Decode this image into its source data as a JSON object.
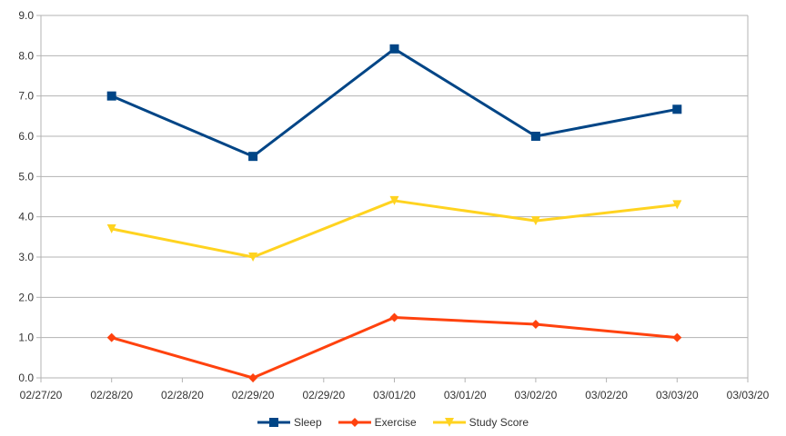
{
  "chart_data": {
    "type": "line",
    "x_tick_labels": [
      "02/27/20",
      "02/28/20",
      "02/28/20",
      "02/29/20",
      "02/29/20",
      "03/01/20",
      "03/01/20",
      "03/02/20",
      "03/02/20",
      "03/03/20",
      "03/03/20"
    ],
    "x": [
      "02/28/20",
      "02/29/20",
      "03/01/20",
      "03/02/20",
      "03/03/20"
    ],
    "y_ticks": [
      "0.0",
      "1.0",
      "2.0",
      "3.0",
      "4.0",
      "5.0",
      "6.0",
      "7.0",
      "8.0",
      "9.0"
    ],
    "ylim": [
      0,
      9
    ],
    "grid": true,
    "legend_position": "bottom",
    "series": [
      {
        "name": "Sleep",
        "values": [
          7.0,
          5.5,
          8.17,
          6.0,
          6.67
        ],
        "color": "#004586",
        "marker": "square"
      },
      {
        "name": "Exercise",
        "values": [
          1.0,
          0.0,
          1.5,
          1.33,
          1.0
        ],
        "color": "#ff420e",
        "marker": "diamond"
      },
      {
        "name": "Study Score",
        "values": [
          3.7,
          3.0,
          4.4,
          3.9,
          4.3
        ],
        "color": "#ffd320",
        "marker": "triangle-down"
      }
    ]
  }
}
